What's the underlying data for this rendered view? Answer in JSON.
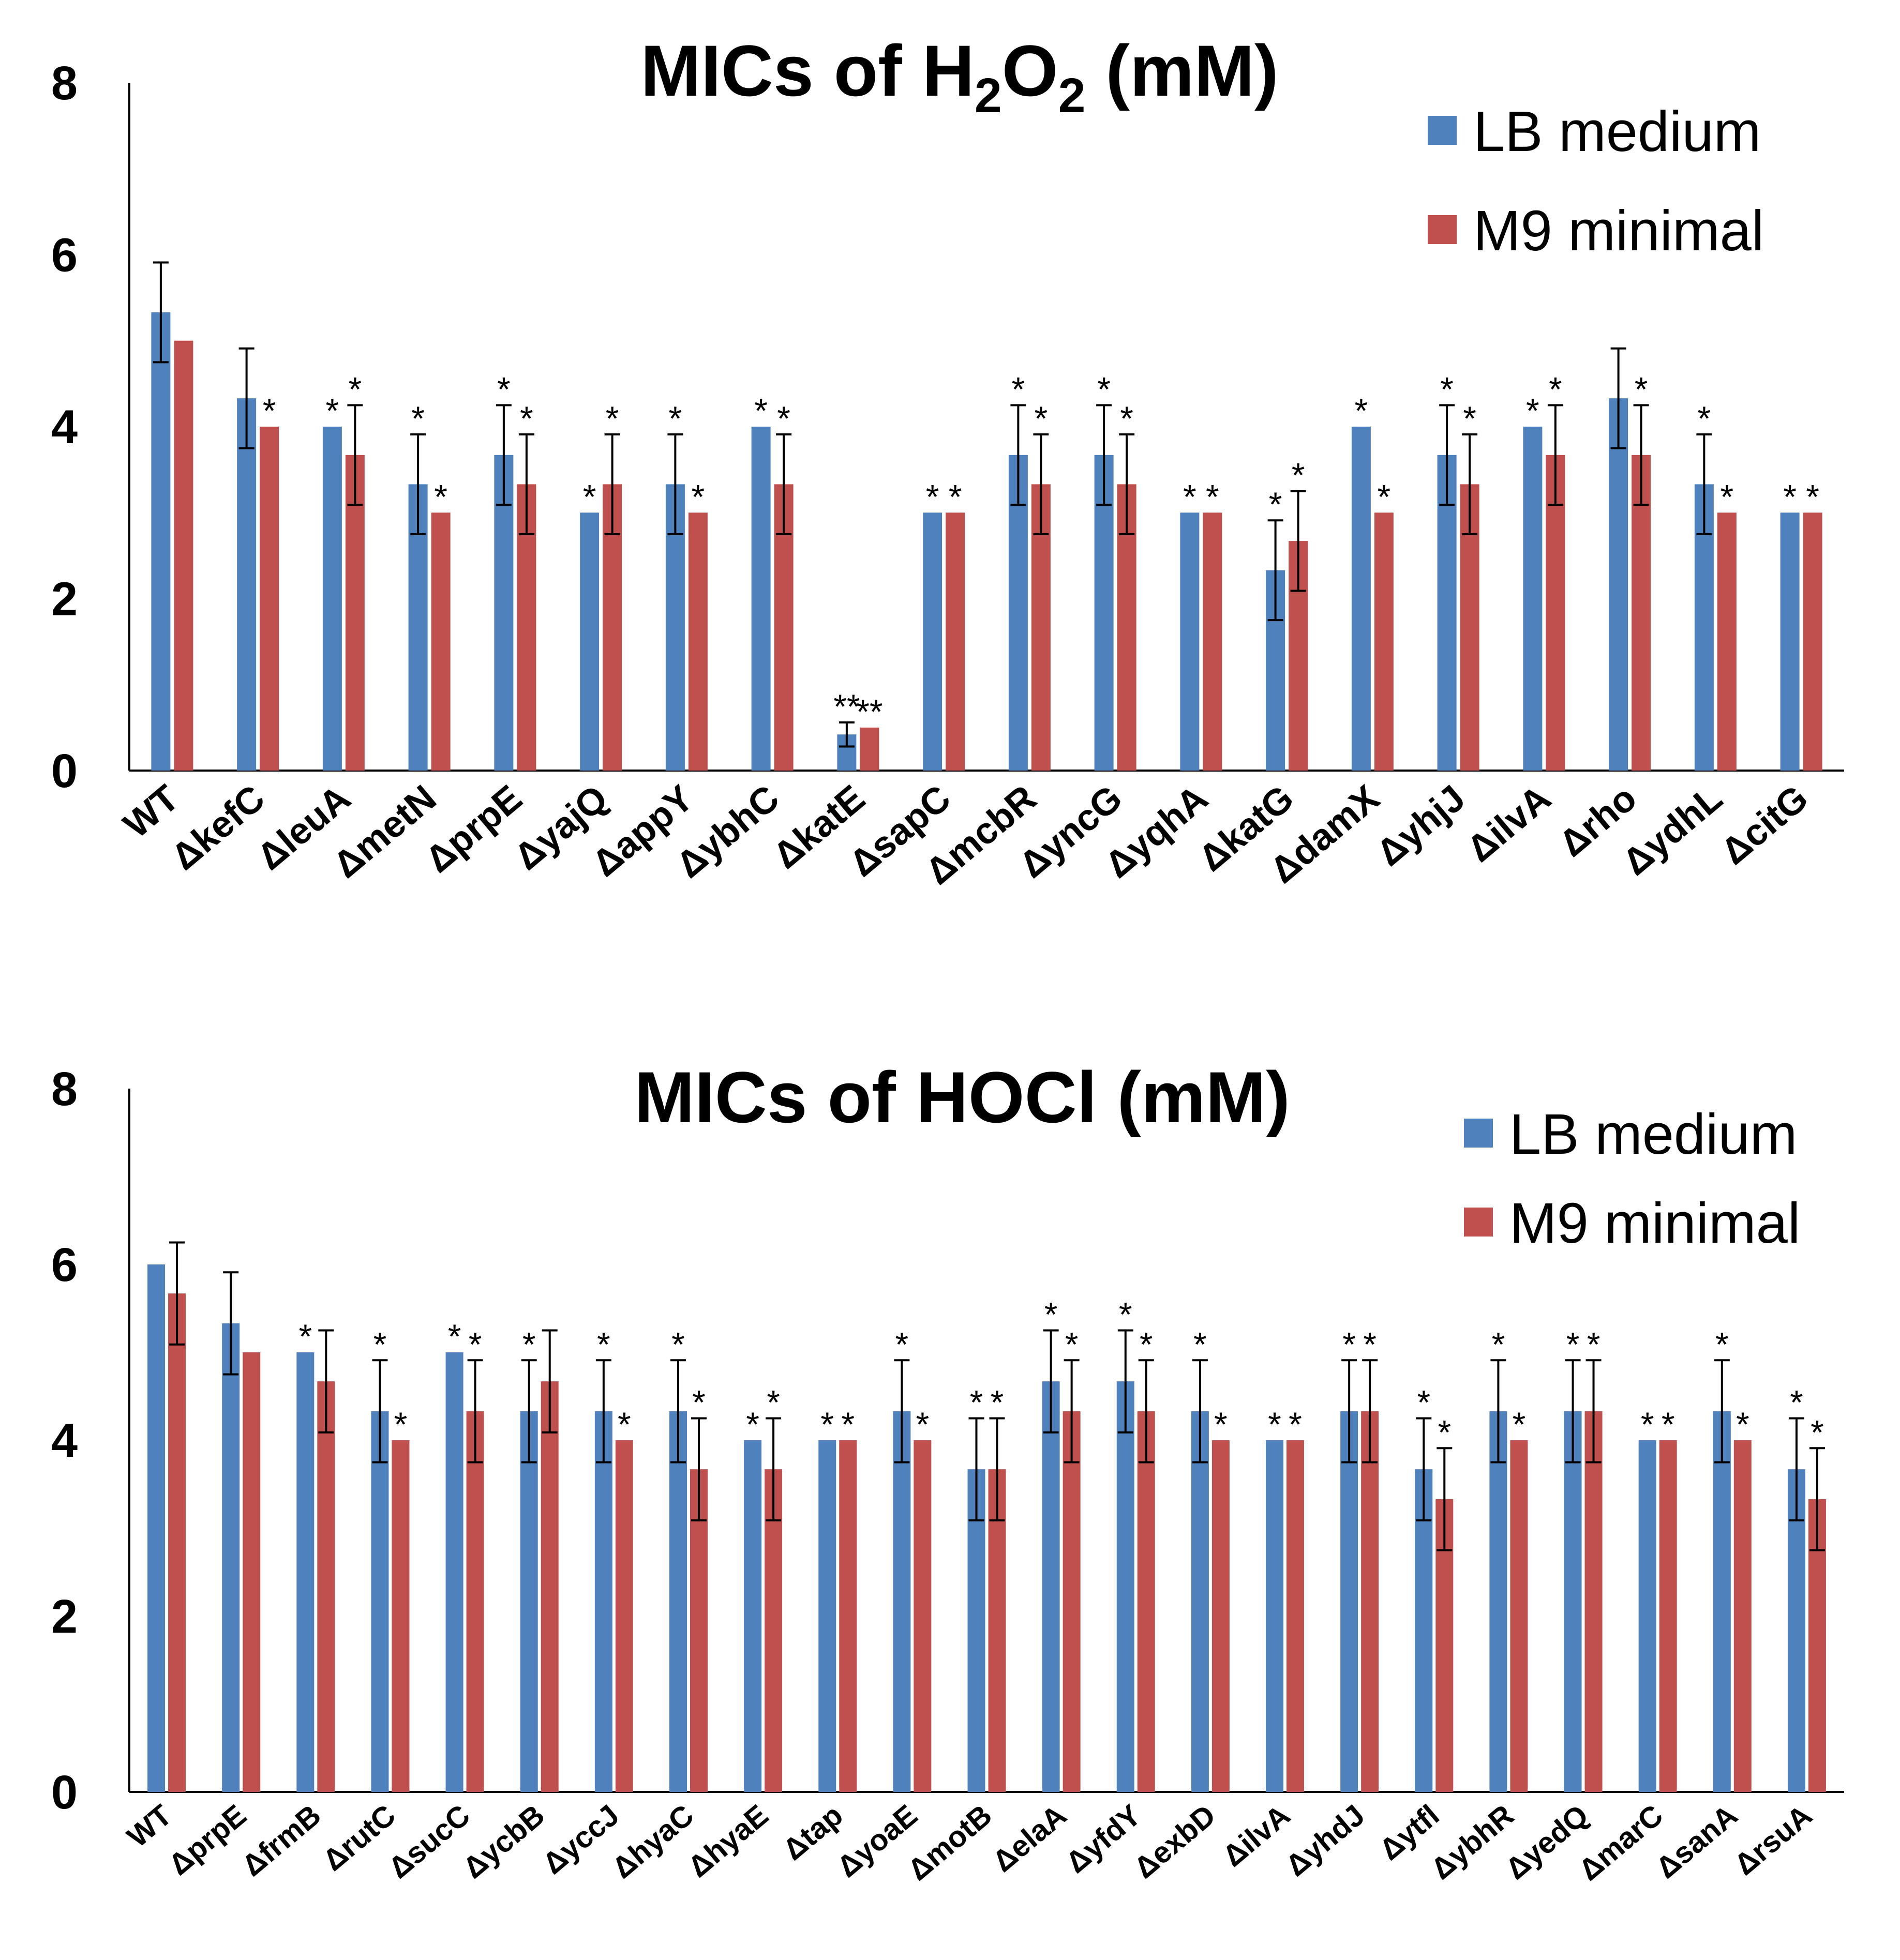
{
  "colors": {
    "lb": "#4f81bd",
    "m9": "#c0504d",
    "axis": "#000000",
    "error": "#000000"
  },
  "chart_data": [
    {
      "type": "bar",
      "title_prefix": "MICs of H",
      "title_sub1": "2",
      "title_mid": "O",
      "title_sub2": "2",
      "title_suffix": " (mM)",
      "title": "MICs of H2O2 (mM)",
      "ylabel": "",
      "xlabel": "",
      "ylim": [
        0,
        8
      ],
      "yticks": [
        "0",
        "2",
        "4",
        "6",
        "8"
      ],
      "legend_position": "top-right",
      "grid": false,
      "categories": [
        "WT",
        "ΔkefC",
        "ΔleuA",
        "ΔmetN",
        "ΔprpE",
        "ΔyajQ",
        "ΔappY",
        "ΔybhC",
        "ΔkatE",
        "ΔsapC",
        "ΔmcbR",
        "ΔyncG",
        "ΔyqhA",
        "ΔkatG",
        "ΔdamX",
        "ΔyhjJ",
        "ΔilvA",
        "Δrho",
        "ΔydhL",
        "ΔcitG"
      ],
      "series": [
        {
          "name": "LB medium",
          "values": [
            5.33,
            4.33,
            4.0,
            3.33,
            3.67,
            3.0,
            3.33,
            4.0,
            0.42,
            3.0,
            3.67,
            3.67,
            3.0,
            2.33,
            4.0,
            3.67,
            4.0,
            4.33,
            3.33,
            3.0
          ],
          "errors": [
            0.58,
            0.58,
            0.0,
            0.58,
            0.58,
            0.0,
            0.58,
            0.0,
            0.14,
            0.0,
            0.58,
            0.58,
            0.0,
            0.58,
            0.0,
            0.58,
            0.0,
            0.58,
            0.58,
            0.0
          ],
          "annotations": [
            "",
            "",
            "*",
            "*",
            "*",
            "*",
            "*",
            "*",
            "**",
            "*",
            "*",
            "*",
            "*",
            "*",
            "*",
            "*",
            "*",
            "",
            "*",
            "*"
          ]
        },
        {
          "name": "M9 minimal",
          "values": [
            5.0,
            4.0,
            3.67,
            3.0,
            3.33,
            3.33,
            3.0,
            3.33,
            0.5,
            3.0,
            3.33,
            3.33,
            3.0,
            2.67,
            3.0,
            3.33,
            3.67,
            3.67,
            3.0,
            3.0
          ],
          "errors": [
            0.0,
            0.0,
            0.58,
            0.0,
            0.58,
            0.58,
            0.0,
            0.58,
            0.0,
            0.0,
            0.58,
            0.58,
            0.0,
            0.58,
            0.0,
            0.58,
            0.58,
            0.58,
            0.0,
            0.0
          ],
          "annotations": [
            "",
            "*",
            "*",
            "*",
            "*",
            "*",
            "*",
            "*",
            "**",
            "*",
            "*",
            "*",
            "*",
            "*",
            "*",
            "*",
            "*",
            "*",
            "*",
            "*"
          ]
        }
      ]
    },
    {
      "type": "bar",
      "title": "MICs of HOCl (mM)",
      "ylabel": "",
      "xlabel": "",
      "ylim": [
        0,
        8
      ],
      "yticks": [
        "0",
        "2",
        "4",
        "6",
        "8"
      ],
      "legend_position": "top-right",
      "grid": false,
      "categories": [
        "WT",
        "ΔprpE",
        "ΔfrmB",
        "ΔrutC",
        "ΔsucC",
        "ΔycbB",
        "ΔyccJ",
        "ΔhyaC",
        "ΔhyaE",
        "Δtap",
        "ΔyoaE",
        "ΔmotB",
        "ΔelaA",
        "ΔyfdY",
        "ΔexbD",
        "ΔilvA",
        "ΔyhdJ",
        "Δytfl",
        "ΔybhR",
        "ΔyedQ",
        "ΔmarC",
        "ΔsanA",
        "ΔrsuA"
      ],
      "series": [
        {
          "name": "LB medium",
          "values": [
            6.0,
            5.33,
            5.0,
            4.33,
            5.0,
            4.33,
            4.33,
            4.33,
            4.0,
            4.0,
            4.33,
            3.67,
            4.67,
            4.67,
            4.33,
            4.0,
            4.33,
            3.67,
            4.33,
            4.33,
            4.0,
            4.33,
            3.67
          ],
          "errors": [
            0.0,
            0.58,
            0.0,
            0.58,
            0.0,
            0.58,
            0.58,
            0.58,
            0.0,
            0.0,
            0.58,
            0.58,
            0.58,
            0.58,
            0.58,
            0.0,
            0.58,
            0.58,
            0.58,
            0.58,
            0.0,
            0.58,
            0.58
          ],
          "annotations": [
            "",
            "",
            "*",
            "*",
            "*",
            "*",
            "*",
            "*",
            "*",
            "*",
            "*",
            "*",
            "*",
            "*",
            "*",
            "*",
            "*",
            "*",
            "*",
            "*",
            "*",
            "*",
            "*"
          ]
        },
        {
          "name": "M9 minimal",
          "values": [
            5.67,
            5.0,
            4.67,
            4.0,
            4.33,
            4.67,
            4.0,
            3.67,
            3.67,
            4.0,
            4.0,
            3.67,
            4.33,
            4.33,
            4.0,
            4.0,
            4.33,
            3.33,
            4.0,
            4.33,
            4.0,
            4.0,
            3.33
          ],
          "errors": [
            0.58,
            0.0,
            0.58,
            0.0,
            0.58,
            0.58,
            0.0,
            0.58,
            0.58,
            0.0,
            0.0,
            0.58,
            0.58,
            0.58,
            0.0,
            0.0,
            0.58,
            0.58,
            0.0,
            0.58,
            0.0,
            0.0,
            0.58
          ],
          "annotations": [
            "",
            "",
            "",
            "*",
            "*",
            "",
            "*",
            "*",
            "*",
            "*",
            "*",
            "*",
            "*",
            "*",
            "*",
            "*",
            "*",
            "*",
            "*",
            "*",
            "*",
            "*",
            "*"
          ]
        }
      ]
    }
  ]
}
